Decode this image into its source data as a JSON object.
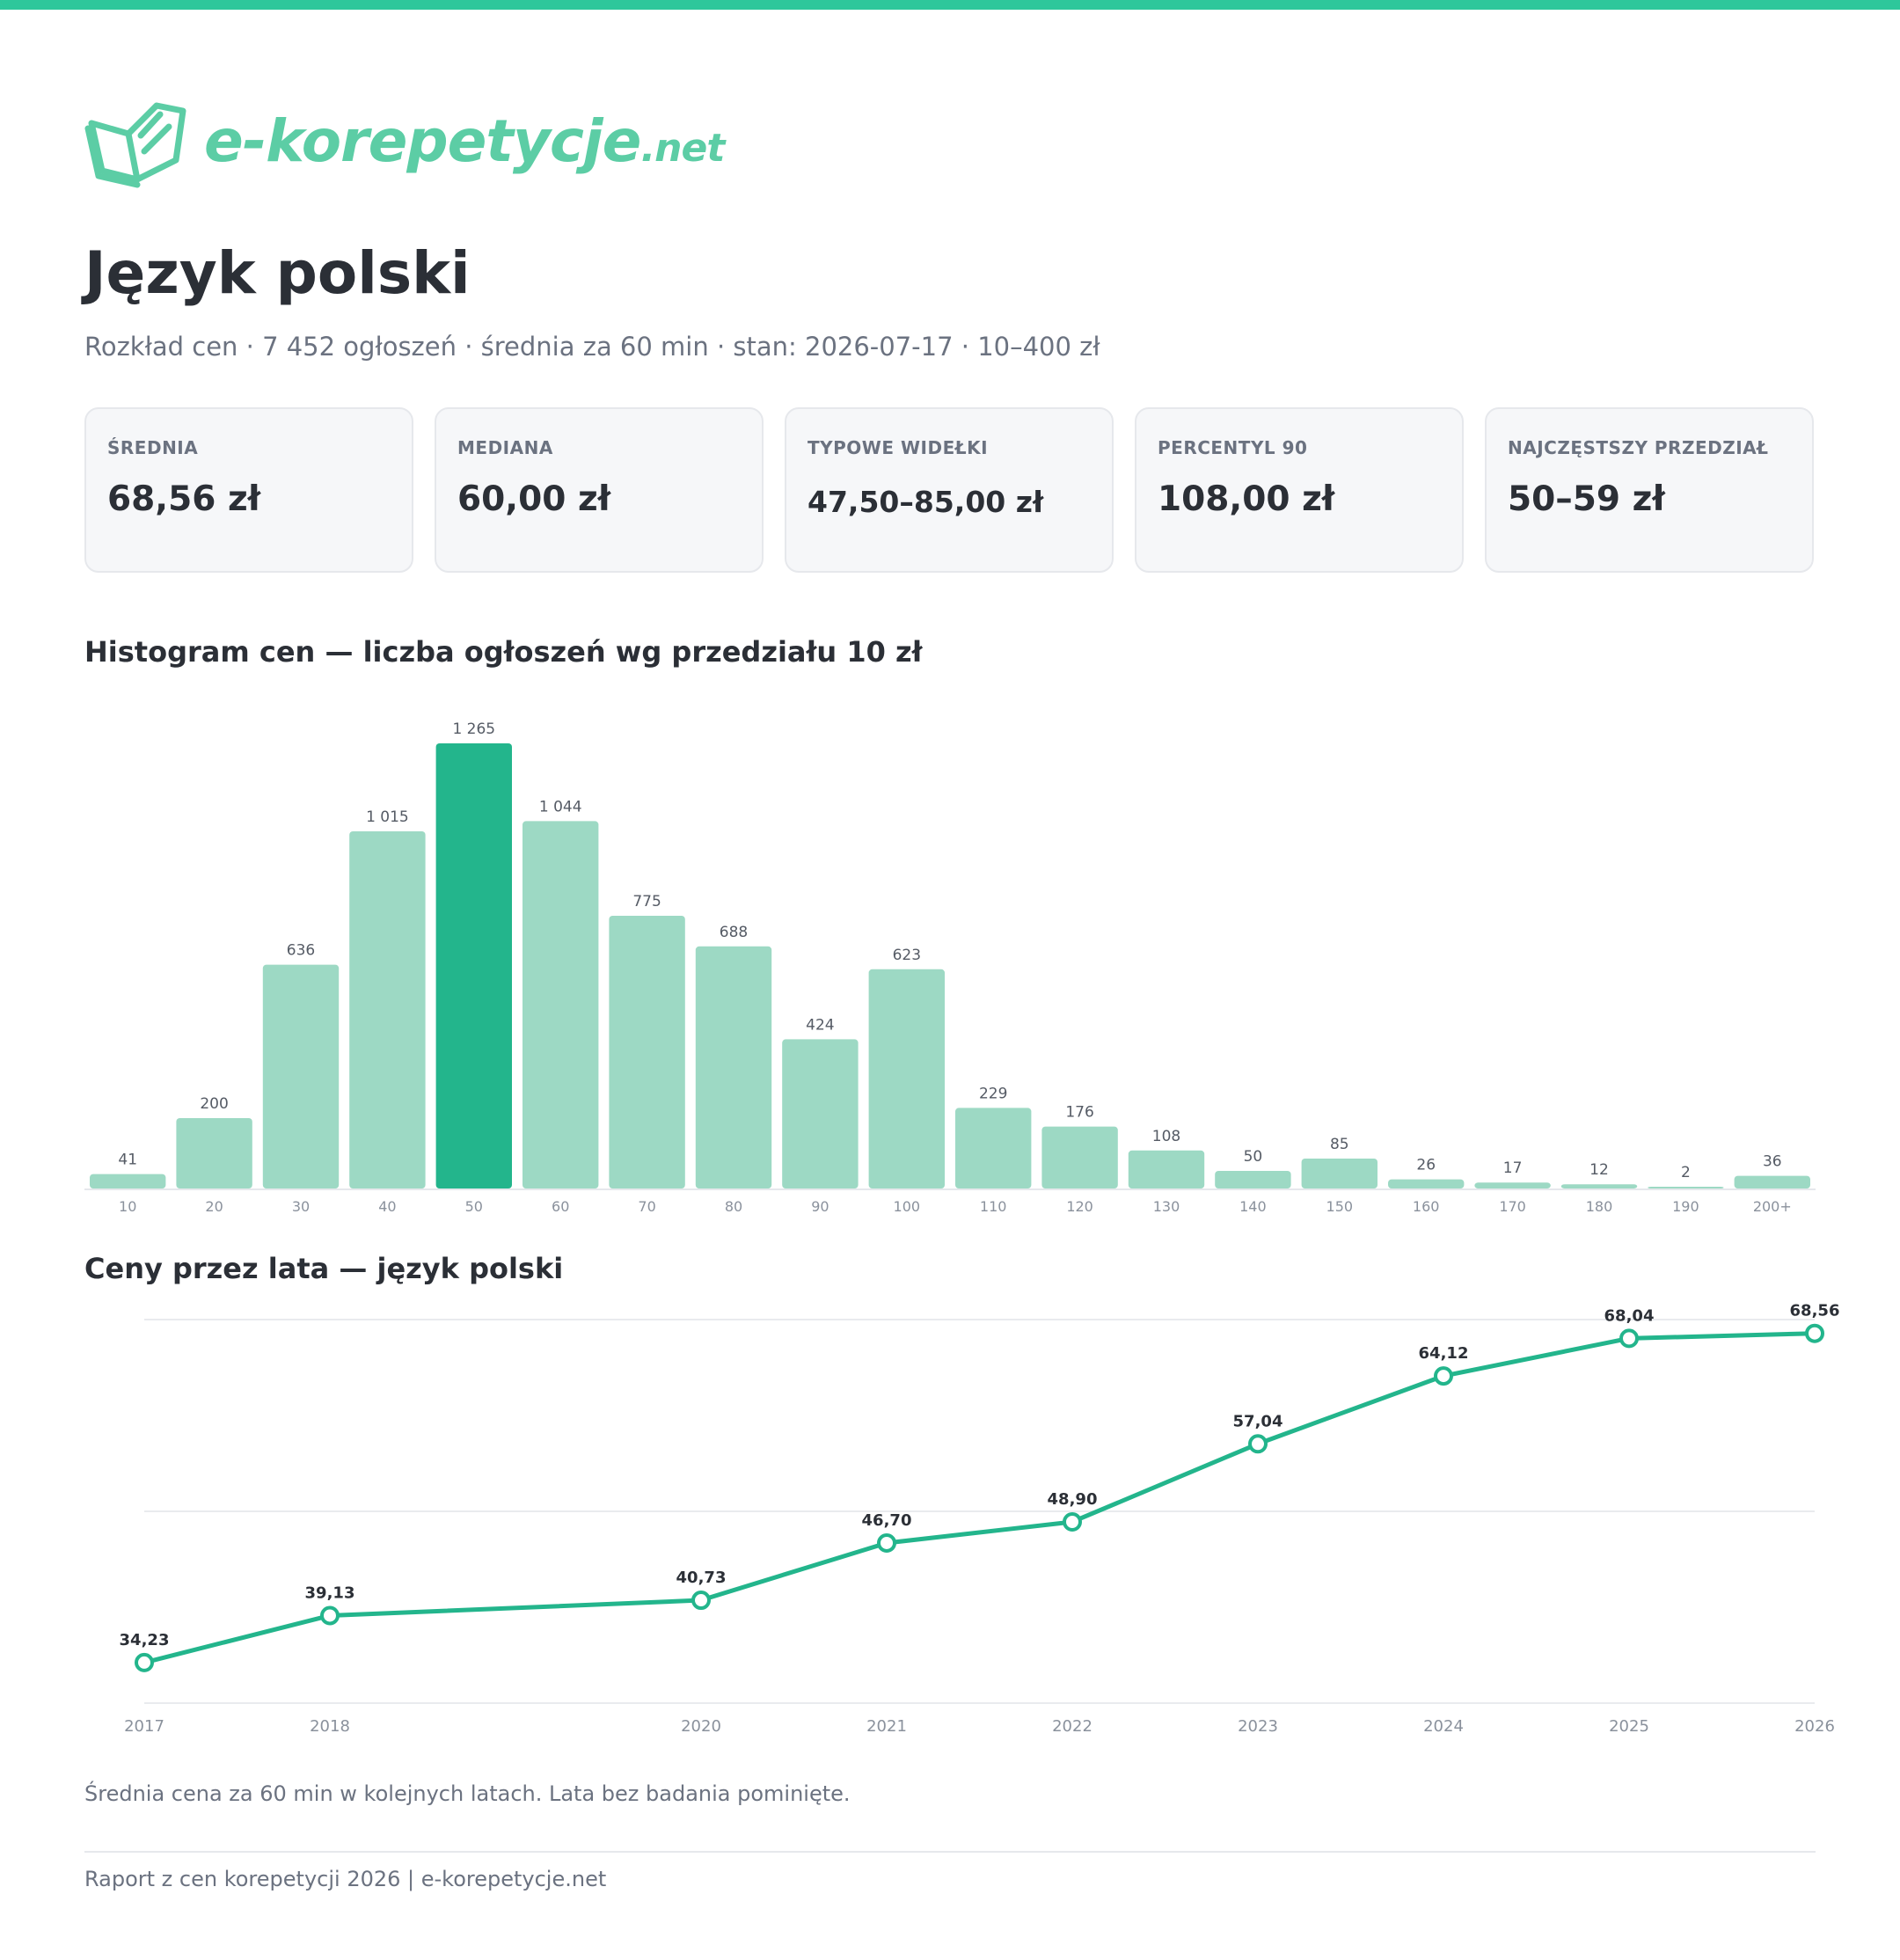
{
  "logo": {
    "name": "e-korepetycje",
    "tld": ".net"
  },
  "header": {
    "title": "Język polski",
    "subtitle": "Rozkład cen · 7 452 ogłoszeń · średnia za 60 min · stan: 2026-07-17 · 10–400 zł"
  },
  "cards": [
    {
      "label": "ŚREDNIA",
      "value": "68,56 zł"
    },
    {
      "label": "MEDIANA",
      "value": "60,00 zł"
    },
    {
      "label": "TYPOWE WIDEŁKI",
      "value": "47,50–85,00 zł"
    },
    {
      "label": "PERCENTYL 90",
      "value": "108,00 zł"
    },
    {
      "label": "NAJCZĘSTSZY PRZEDZIAŁ",
      "value": "50–59 zł"
    }
  ],
  "sections": {
    "histogram_title": "Histogram cen — liczba ogłoszeń wg przedziału 10 zł",
    "line_title": "Ceny przez lata — język polski"
  },
  "chart_data": [
    {
      "type": "bar",
      "title": "Histogram cen — liczba ogłoszeń wg przedziału 10 zł",
      "categories": [
        "10",
        "20",
        "30",
        "40",
        "50",
        "60",
        "70",
        "80",
        "90",
        "100",
        "110",
        "120",
        "130",
        "140",
        "150",
        "160",
        "170",
        "180",
        "190",
        "200+"
      ],
      "values": [
        41,
        200,
        636,
        1015,
        1265,
        1044,
        775,
        688,
        424,
        623,
        229,
        176,
        108,
        50,
        85,
        26,
        17,
        12,
        2,
        36
      ],
      "value_labels": [
        "41",
        "200",
        "636",
        "1 015",
        "1 265",
        "1 044",
        "775",
        "688",
        "424",
        "623",
        "229",
        "176",
        "108",
        "50",
        "85",
        "26",
        "17",
        "12",
        "2",
        "36"
      ],
      "highlight_category": "50",
      "colors": {
        "bar": "#9dd9c4",
        "highlight": "#23b58c"
      },
      "ylim": [
        0,
        1265
      ]
    },
    {
      "type": "line",
      "title": "Ceny przez lata — język polski",
      "x": [
        2017,
        2018,
        2020,
        2021,
        2022,
        2023,
        2024,
        2025,
        2026
      ],
      "x_labels": [
        "2017",
        "2018",
        "2020",
        "2021",
        "2022",
        "2023",
        "2024",
        "2025",
        "2026"
      ],
      "values": [
        34.23,
        39.13,
        40.73,
        46.7,
        48.9,
        57.04,
        64.12,
        68.04,
        68.56
      ],
      "value_labels": [
        "34,23",
        "39,13",
        "40,73",
        "46,70",
        "48,90",
        "57,04",
        "64,12",
        "68,04",
        "68,56"
      ],
      "ylim": [
        30,
        70
      ],
      "grid": true,
      "colors": {
        "line": "#23b58c"
      }
    }
  ],
  "note": "Średnia cena za 60 min w kolejnych latach. Lata bez badania pominięte.",
  "footer": "Raport z cen korepetycji 2026 | e-korepetycje.net"
}
